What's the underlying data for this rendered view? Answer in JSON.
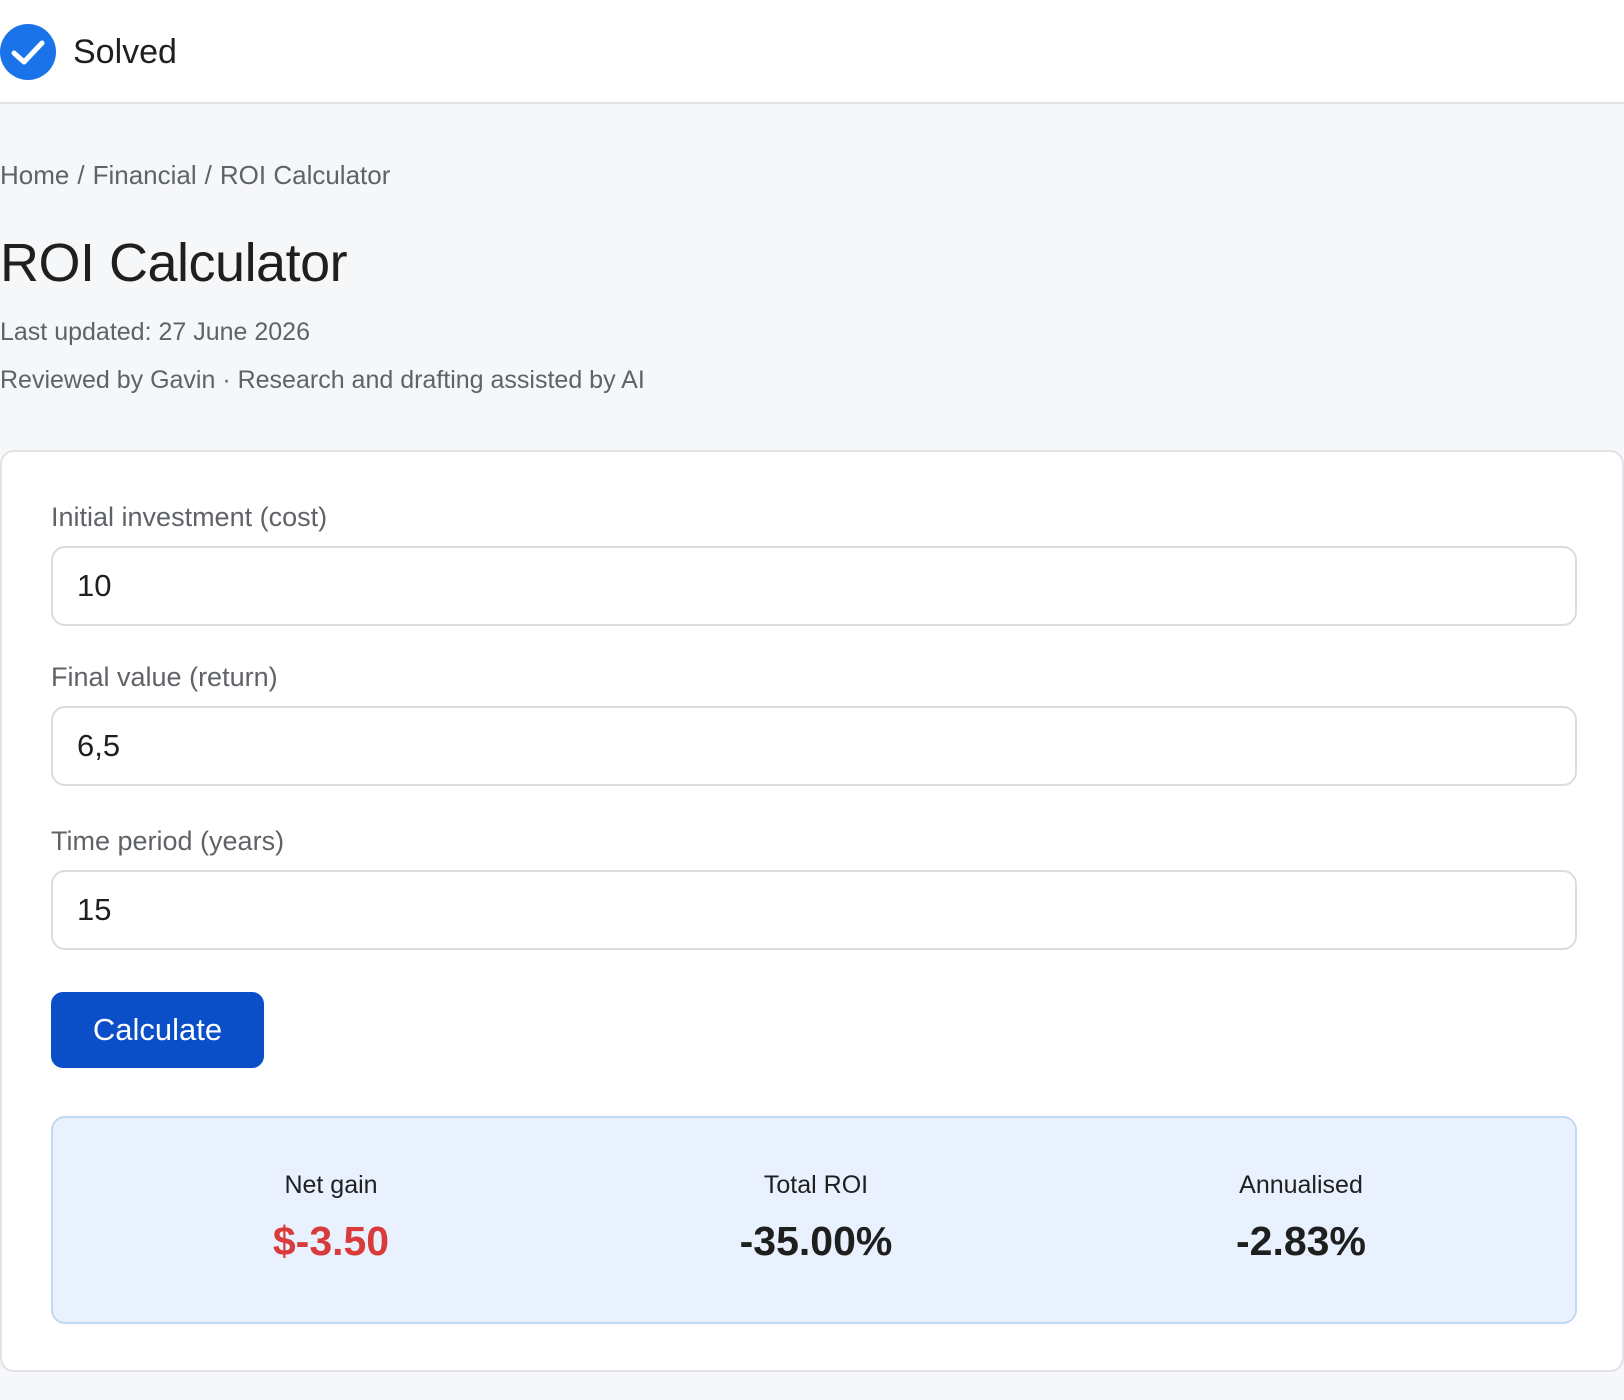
{
  "header": {
    "status_label": "Solved",
    "status_icon": "check-circle-icon",
    "status_color": "#1a73e8"
  },
  "breadcrumb": [
    "Home",
    "Financial",
    "ROI Calculator"
  ],
  "page": {
    "title": "ROI Calculator",
    "last_updated": "Last updated: 27 June 2026",
    "credit": "Reviewed by Gavin · Research and drafting assisted by AI"
  },
  "form": {
    "initial_investment": {
      "label": "Initial investment (cost)",
      "value": "10"
    },
    "final_value": {
      "label": "Final value (return)",
      "value": "6,5"
    },
    "time_period": {
      "label": "Time period (years)",
      "value": "15"
    },
    "calculate_label": "Calculate",
    "button_color": "#0b4fc8"
  },
  "results": {
    "net_gain": {
      "label": "Net gain",
      "value": "$-3.50",
      "color": "#d93a3a"
    },
    "total_roi": {
      "label": "Total ROI",
      "value": "-35.00%"
    },
    "annualised": {
      "label": "Annualised",
      "value": "-2.83%"
    }
  }
}
